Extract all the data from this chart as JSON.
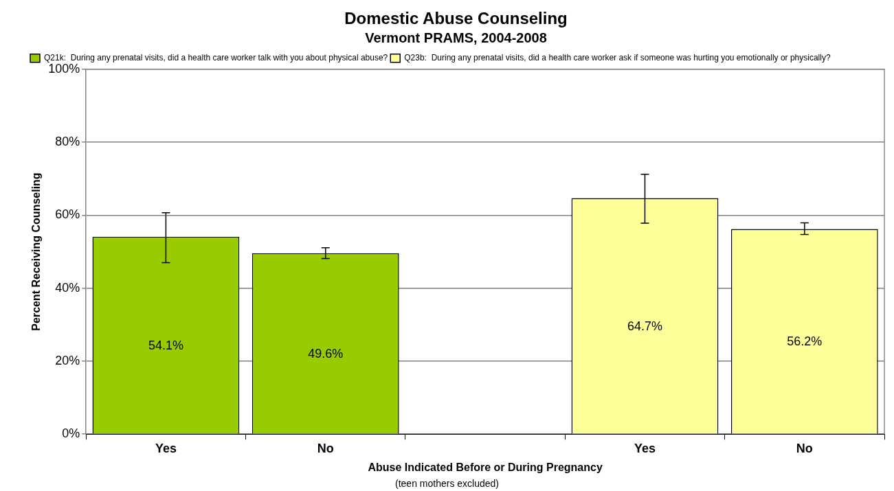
{
  "chart_data": {
    "type": "bar",
    "title": "Domestic Abuse Counseling",
    "subtitle": "Vermont PRAMS, 2004-2008",
    "xlabel": "Abuse Indicated Before or During Pregnancy",
    "ylabel": "Percent Receiving Counseling",
    "annotations": [
      "(teen mothers excluded)"
    ],
    "categories": [
      "Yes",
      "No",
      null,
      "Yes",
      "No"
    ],
    "series": [
      {
        "name": "Q21k:  During any prenatal visits, did a health care worker talk with you about physical abuse?",
        "color": "#99cc00",
        "values": [
          54.1,
          49.6,
          null,
          null,
          null
        ],
        "errors": [
          [
            47.0,
            60.7
          ],
          [
            48.1,
            51.1
          ],
          null,
          null,
          null
        ],
        "value_labels": [
          "54.1%",
          "49.6%",
          null,
          null,
          null
        ]
      },
      {
        "name": "Q23b:  During any prenatal visits, did a health care worker ask if someone was hurting you emotionally or physically?",
        "color": "#ffff99",
        "values": [
          null,
          null,
          null,
          64.7,
          56.2
        ],
        "errors": [
          null,
          null,
          null,
          [
            57.8,
            71.2
          ],
          [
            54.7,
            57.9
          ]
        ],
        "value_labels": [
          null,
          null,
          null,
          "64.7%",
          "56.2%"
        ]
      }
    ],
    "ylim": [
      0,
      100
    ],
    "yticks": [
      {
        "value": 0,
        "label": "0%"
      },
      {
        "value": 20,
        "label": "20%"
      },
      {
        "value": 40,
        "label": "40%"
      },
      {
        "value": 60,
        "label": "60%"
      },
      {
        "value": 80,
        "label": "80%"
      },
      {
        "value": 100,
        "label": "100%"
      }
    ],
    "grid": "y",
    "legend": "top left"
  }
}
